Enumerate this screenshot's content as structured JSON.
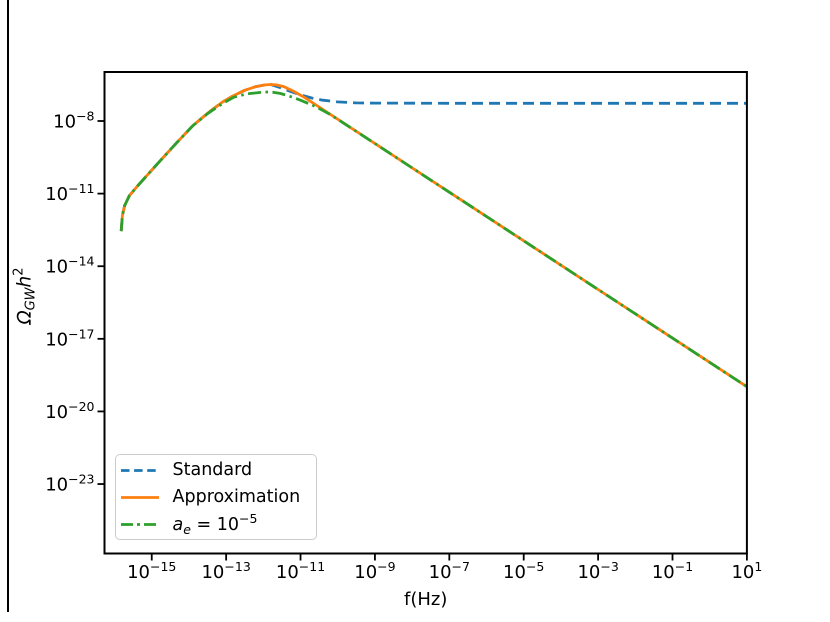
{
  "figure": {
    "background": "#ffffff",
    "decoration": {
      "left_edge_line_color": "#000000"
    }
  },
  "chart_data": {
    "type": "line",
    "title": "",
    "xlabel": "f(Hz)",
    "ylabel": "Ω_GW h²",
    "ylabel_parts": [
      {
        "t": "Ω",
        "s": "i"
      },
      {
        "t": "GW",
        "s": "sub"
      },
      {
        "t": "h",
        "s": "i"
      },
      {
        "t": "2",
        "s": "sup"
      }
    ],
    "x_scale": "log",
    "y_scale": "log",
    "xlim_exp": [
      -16.27,
      1
    ],
    "ylim_exp": [
      -25.87,
      -5.975
    ],
    "x_tick_exponents": [
      -15,
      -13,
      -11,
      -9,
      -7,
      -5,
      -3,
      -1,
      1
    ],
    "y_tick_exponents": [
      -8,
      -11,
      -14,
      -17,
      -20,
      -23
    ],
    "grid": false,
    "legend_position": "lower left",
    "series": [
      {
        "name": "Standard",
        "color": "#1f77b4",
        "style": "dashed",
        "points_log10": [
          [
            -15.82,
            -12.55
          ],
          [
            -15.79,
            -11.9
          ],
          [
            -15.73,
            -11.5
          ],
          [
            -15.6,
            -11.08
          ],
          [
            -15.38,
            -10.68
          ],
          [
            -15.1,
            -10.2
          ],
          [
            -14.7,
            -9.52
          ],
          [
            -14.3,
            -8.85
          ],
          [
            -13.9,
            -8.2
          ],
          [
            -13.5,
            -7.68
          ],
          [
            -13.1,
            -7.22
          ],
          [
            -12.8,
            -6.95
          ],
          [
            -12.5,
            -6.73
          ],
          [
            -12.2,
            -6.58
          ],
          [
            -11.95,
            -6.51
          ],
          [
            -11.8,
            -6.49
          ],
          [
            -11.55,
            -6.62
          ],
          [
            -11.3,
            -6.76
          ],
          [
            -11.0,
            -6.92
          ],
          [
            -10.7,
            -7.05
          ],
          [
            -10.4,
            -7.14
          ],
          [
            -10.0,
            -7.21
          ],
          [
            -9.5,
            -7.25
          ],
          [
            -9.0,
            -7.26
          ],
          [
            -7,
            -7.27
          ],
          [
            -5,
            -7.27
          ],
          [
            -3,
            -7.27
          ],
          [
            -1,
            -7.27
          ],
          [
            1,
            -7.27
          ]
        ]
      },
      {
        "name": "Approximation",
        "color": "#ff7f0e",
        "style": "solid",
        "points_log10": [
          [
            -15.82,
            -12.55
          ],
          [
            -15.79,
            -11.9
          ],
          [
            -15.73,
            -11.5
          ],
          [
            -15.6,
            -11.08
          ],
          [
            -15.38,
            -10.68
          ],
          [
            -15.1,
            -10.2
          ],
          [
            -14.7,
            -9.52
          ],
          [
            -14.3,
            -8.85
          ],
          [
            -13.9,
            -8.2
          ],
          [
            -13.5,
            -7.68
          ],
          [
            -13.1,
            -7.22
          ],
          [
            -12.8,
            -6.95
          ],
          [
            -12.5,
            -6.73
          ],
          [
            -12.2,
            -6.58
          ],
          [
            -11.95,
            -6.51
          ],
          [
            -11.8,
            -6.49
          ],
          [
            -11.65,
            -6.51
          ],
          [
            -11.45,
            -6.58
          ],
          [
            -11.2,
            -6.76
          ],
          [
            -10.9,
            -7.02
          ],
          [
            -10.5,
            -7.42
          ],
          [
            -9,
            -8.93
          ],
          [
            -7,
            -10.94
          ],
          [
            -5,
            -12.95
          ],
          [
            -3,
            -14.96
          ],
          [
            -1,
            -16.97
          ],
          [
            1,
            -18.98
          ]
        ]
      },
      {
        "name": "a_e = 10^-5",
        "color": "#2ca02c",
        "style": "dashdot",
        "points_log10": [
          [
            -15.82,
            -12.55
          ],
          [
            -15.79,
            -11.9
          ],
          [
            -15.73,
            -11.5
          ],
          [
            -15.6,
            -11.08
          ],
          [
            -15.38,
            -10.68
          ],
          [
            -15.1,
            -10.2
          ],
          [
            -14.7,
            -9.52
          ],
          [
            -14.3,
            -8.85
          ],
          [
            -13.9,
            -8.2
          ],
          [
            -13.5,
            -7.7
          ],
          [
            -13.1,
            -7.28
          ],
          [
            -12.8,
            -7.02
          ],
          [
            -12.45,
            -6.88
          ],
          [
            -12.1,
            -6.82
          ],
          [
            -11.95,
            -6.8
          ],
          [
            -11.75,
            -6.81
          ],
          [
            -11.55,
            -6.86
          ],
          [
            -11.3,
            -6.97
          ],
          [
            -11.0,
            -7.14
          ],
          [
            -10.6,
            -7.4
          ],
          [
            -10.2,
            -7.73
          ],
          [
            -9,
            -8.93
          ],
          [
            -7,
            -10.94
          ],
          [
            -5,
            -12.95
          ],
          [
            -3,
            -14.96
          ],
          [
            -1,
            -16.97
          ],
          [
            1,
            -18.98
          ]
        ]
      }
    ]
  },
  "legend": {
    "entries": [
      {
        "id": "standard",
        "parts": [
          {
            "t": "Standard",
            "s": "n"
          }
        ]
      },
      {
        "id": "approximation",
        "parts": [
          {
            "t": "Approximation",
            "s": "n"
          }
        ]
      },
      {
        "id": "ae",
        "parts": [
          {
            "t": "a",
            "s": "i"
          },
          {
            "t": "e",
            "s": "sub"
          },
          {
            "t": " = 10",
            "s": "n"
          },
          {
            "t": "−5",
            "s": "sup"
          }
        ]
      }
    ]
  }
}
